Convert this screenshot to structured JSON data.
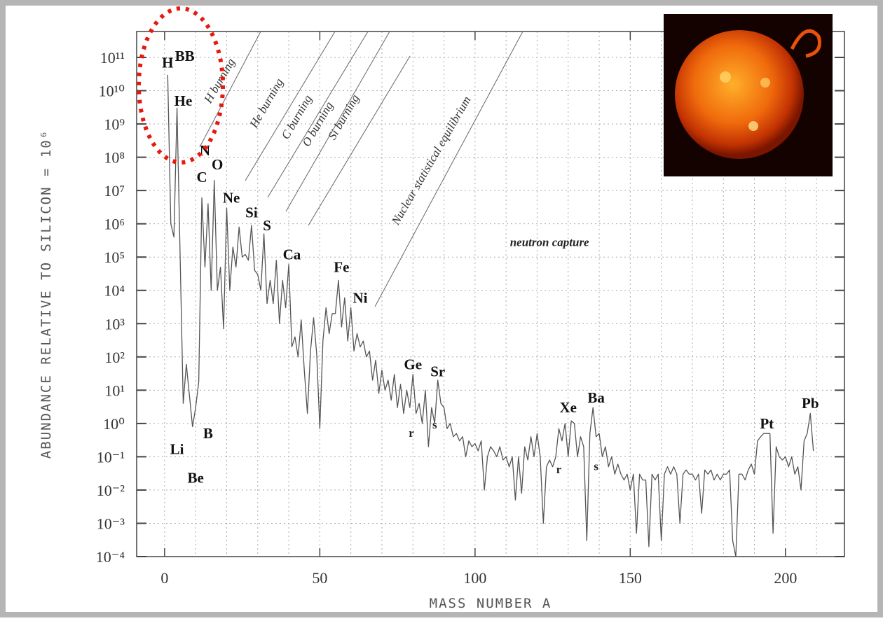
{
  "chart_data": {
    "type": "line",
    "xlabel": "MASS NUMBER A",
    "ylabel": "ABUNDANCE RELATIVE TO SILICON = 10⁶",
    "log_y": true,
    "grid": true,
    "xlim": [
      -9,
      219
    ],
    "ylim": [
      0.0001,
      600000000000
    ],
    "xticks": [
      0,
      50,
      100,
      150,
      200
    ],
    "xminorticks": [
      10,
      20,
      30,
      40,
      60,
      70,
      80,
      90,
      110,
      120,
      130,
      140,
      160,
      170,
      180,
      190,
      210
    ],
    "yticks": [
      {
        "value": 100000000000.0,
        "label": "10¹¹"
      },
      {
        "value": 10000000000.0,
        "label": "10¹⁰"
      },
      {
        "value": 1000000000.0,
        "label": "10⁹"
      },
      {
        "value": 100000000.0,
        "label": "10⁸"
      },
      {
        "value": 10000000.0,
        "label": "10⁷"
      },
      {
        "value": 1000000.0,
        "label": "10⁶"
      },
      {
        "value": 100000.0,
        "label": "10⁵"
      },
      {
        "value": 10000.0,
        "label": "10⁴"
      },
      {
        "value": 1000.0,
        "label": "10³"
      },
      {
        "value": 100,
        "label": "10²"
      },
      {
        "value": 10,
        "label": "10¹"
      },
      {
        "value": 1,
        "label": "10⁰"
      },
      {
        "value": 0.1,
        "label": "10⁻¹"
      },
      {
        "value": 0.01,
        "label": "10⁻²"
      },
      {
        "value": 0.001,
        "label": "10⁻³"
      },
      {
        "value": 0.0001,
        "label": "10⁻⁴"
      }
    ],
    "x": [
      1,
      2,
      3,
      4,
      6,
      7,
      9,
      10,
      11,
      12,
      13,
      14,
      15,
      16,
      17,
      18,
      19,
      20,
      21,
      22,
      23,
      24,
      25,
      26,
      27,
      28,
      29,
      30,
      31,
      32,
      33,
      34,
      35,
      36,
      37,
      38,
      39,
      40,
      41,
      42,
      43,
      44,
      45,
      46,
      47,
      48,
      49,
      50,
      51,
      52,
      53,
      54,
      55,
      56,
      57,
      58,
      59,
      60,
      61,
      62,
      63,
      64,
      65,
      66,
      67,
      68,
      69,
      70,
      71,
      72,
      73,
      74,
      75,
      76,
      77,
      78,
      79,
      80,
      81,
      82,
      83,
      84,
      85,
      86,
      87,
      88,
      89,
      90,
      91,
      92,
      93,
      94,
      95,
      96,
      97,
      98,
      99,
      100,
      101,
      102,
      103,
      104,
      105,
      106,
      107,
      108,
      109,
      110,
      111,
      112,
      113,
      114,
      115,
      116,
      117,
      118,
      119,
      120,
      121,
      122,
      123,
      124,
      125,
      126,
      127,
      128,
      129,
      130,
      131,
      132,
      133,
      134,
      135,
      136,
      137,
      138,
      139,
      140,
      141,
      142,
      143,
      144,
      145,
      146,
      147,
      148,
      149,
      150,
      151,
      152,
      153,
      154,
      155,
      156,
      157,
      158,
      159,
      160,
      161,
      162,
      163,
      164,
      165,
      166,
      167,
      168,
      169,
      170,
      171,
      172,
      173,
      174,
      175,
      176,
      177,
      178,
      179,
      180,
      181,
      182,
      183,
      184,
      185,
      186,
      187,
      188,
      189,
      190,
      191,
      192,
      193,
      194,
      195,
      196,
      197,
      198,
      199,
      200,
      201,
      202,
      203,
      204,
      205,
      206,
      207,
      208,
      209
    ],
    "series": [
      {
        "color": "#555555",
        "values": [
          30000000000.0,
          1000000.0,
          400000.0,
          3000000000.0,
          4,
          60,
          0.8,
          3,
          18,
          6000000.0,
          50000.0,
          4000000.0,
          10000.0,
          20000000.0,
          10000.0,
          50000.0,
          700,
          3000000.0,
          10000.0,
          200000.0,
          50000.0,
          800000.0,
          100000.0,
          120000.0,
          80000.0,
          900000.0,
          40000.0,
          30000.0,
          10000.0,
          500000.0,
          4000,
          20000.0,
          4000,
          80000.0,
          1000,
          20000.0,
          3000,
          60000.0,
          200,
          400,
          100,
          1300,
          40,
          2,
          150,
          1500,
          120,
          0.7,
          300,
          3000,
          500,
          2000,
          2000,
          20000.0,
          800,
          6000,
          300,
          3000,
          150,
          500,
          200,
          300,
          100,
          150,
          20,
          80,
          8,
          40,
          10,
          20,
          5,
          30,
          3,
          15,
          2,
          10,
          3,
          30,
          2,
          4,
          1,
          10,
          0.2,
          3,
          1,
          20,
          4,
          3,
          0.7,
          1,
          0.4,
          0.5,
          0.3,
          0.4,
          0.1,
          0.3,
          0.2,
          0.25,
          0.15,
          0.3,
          0.01,
          0.1,
          0.2,
          0.15,
          0.1,
          0.2,
          0.08,
          0.1,
          0.05,
          0.1,
          0.005,
          0.1,
          0.008,
          0.2,
          0.08,
          0.4,
          0.1,
          0.5,
          0.1,
          0.001,
          0.05,
          0.08,
          0.05,
          0.1,
          0.7,
          0.3,
          1,
          0.1,
          1.2,
          1,
          0.1,
          0.4,
          0.2,
          0.0003,
          0.5,
          3,
          0.4,
          0.5,
          0.1,
          0.2,
          0.05,
          0.1,
          0.03,
          0.06,
          0.03,
          0.02,
          0.03,
          0.01,
          0.03,
          0.0005,
          0.03,
          0.02,
          0.02,
          0.0002,
          0.03,
          0.02,
          0.03,
          0.0003,
          0.03,
          0.05,
          0.03,
          0.05,
          0.03,
          0.001,
          0.03,
          0.04,
          0.03,
          0.03,
          0.02,
          0.03,
          0.002,
          0.04,
          0.03,
          0.04,
          0.02,
          0.03,
          0.02,
          0.03,
          0.03,
          0.04,
          0.0003,
          0.0001,
          0.03,
          0.03,
          0.02,
          0.04,
          0.06,
          0.03,
          0.3,
          0.4,
          0.5,
          0.5,
          0.5,
          0.0005,
          0.2,
          0.1,
          0.08,
          0.1,
          0.05,
          0.1,
          0.03,
          0.05,
          0.01,
          0.3,
          0.5,
          2,
          0.15
        ]
      }
    ],
    "annotations": [
      {
        "text": "H",
        "x": 1,
        "y": 70000000000.0
      },
      {
        "text": "BB",
        "x": 6.5,
        "y": 110000000000.0
      },
      {
        "text": "He",
        "x": 6,
        "y": 5000000000.0
      },
      {
        "text": "N",
        "x": 13,
        "y": 160000000.0
      },
      {
        "text": "C",
        "x": 12,
        "y": 25000000.0
      },
      {
        "text": "O",
        "x": 17,
        "y": 60000000.0
      },
      {
        "text": "Ne",
        "x": 21.5,
        "y": 6000000.0
      },
      {
        "text": "Si",
        "x": 28,
        "y": 2200000.0
      },
      {
        "text": "S",
        "x": 33,
        "y": 900000.0
      },
      {
        "text": "Ca",
        "x": 41,
        "y": 120000.0
      },
      {
        "text": "Fe",
        "x": 57,
        "y": 50000.0
      },
      {
        "text": "Ni",
        "x": 63,
        "y": 6000
      },
      {
        "text": "Ge",
        "x": 80,
        "y": 60
      },
      {
        "text": "Sr",
        "x": 88,
        "y": 37
      },
      {
        "text": "r",
        "x": 79.5,
        "y": 0.56,
        "small": true
      },
      {
        "text": "s",
        "x": 87,
        "y": 1,
        "small": true
      },
      {
        "text": "Xe",
        "x": 130,
        "y": 3
      },
      {
        "text": "Ba",
        "x": 139,
        "y": 6
      },
      {
        "text": "r",
        "x": 127,
        "y": 0.045,
        "small": true
      },
      {
        "text": "s",
        "x": 139,
        "y": 0.055,
        "small": true
      },
      {
        "text": "Pt",
        "x": 194,
        "y": 1
      },
      {
        "text": "Pb",
        "x": 208,
        "y": 4
      },
      {
        "text": "Li",
        "x": 4,
        "y": 0.17
      },
      {
        "text": "Be",
        "x": 10,
        "y": 0.023
      },
      {
        "text": "B",
        "x": 14,
        "y": 0.5
      },
      {
        "text": "neutron   capture",
        "x": 124,
        "y": 300000.0,
        "small": true,
        "italic": true
      }
    ],
    "region_labels": [
      "H burning",
      "He burning",
      "C burning",
      "O burning",
      "Si burning",
      "Nuclear statistical equilibrium"
    ]
  }
}
